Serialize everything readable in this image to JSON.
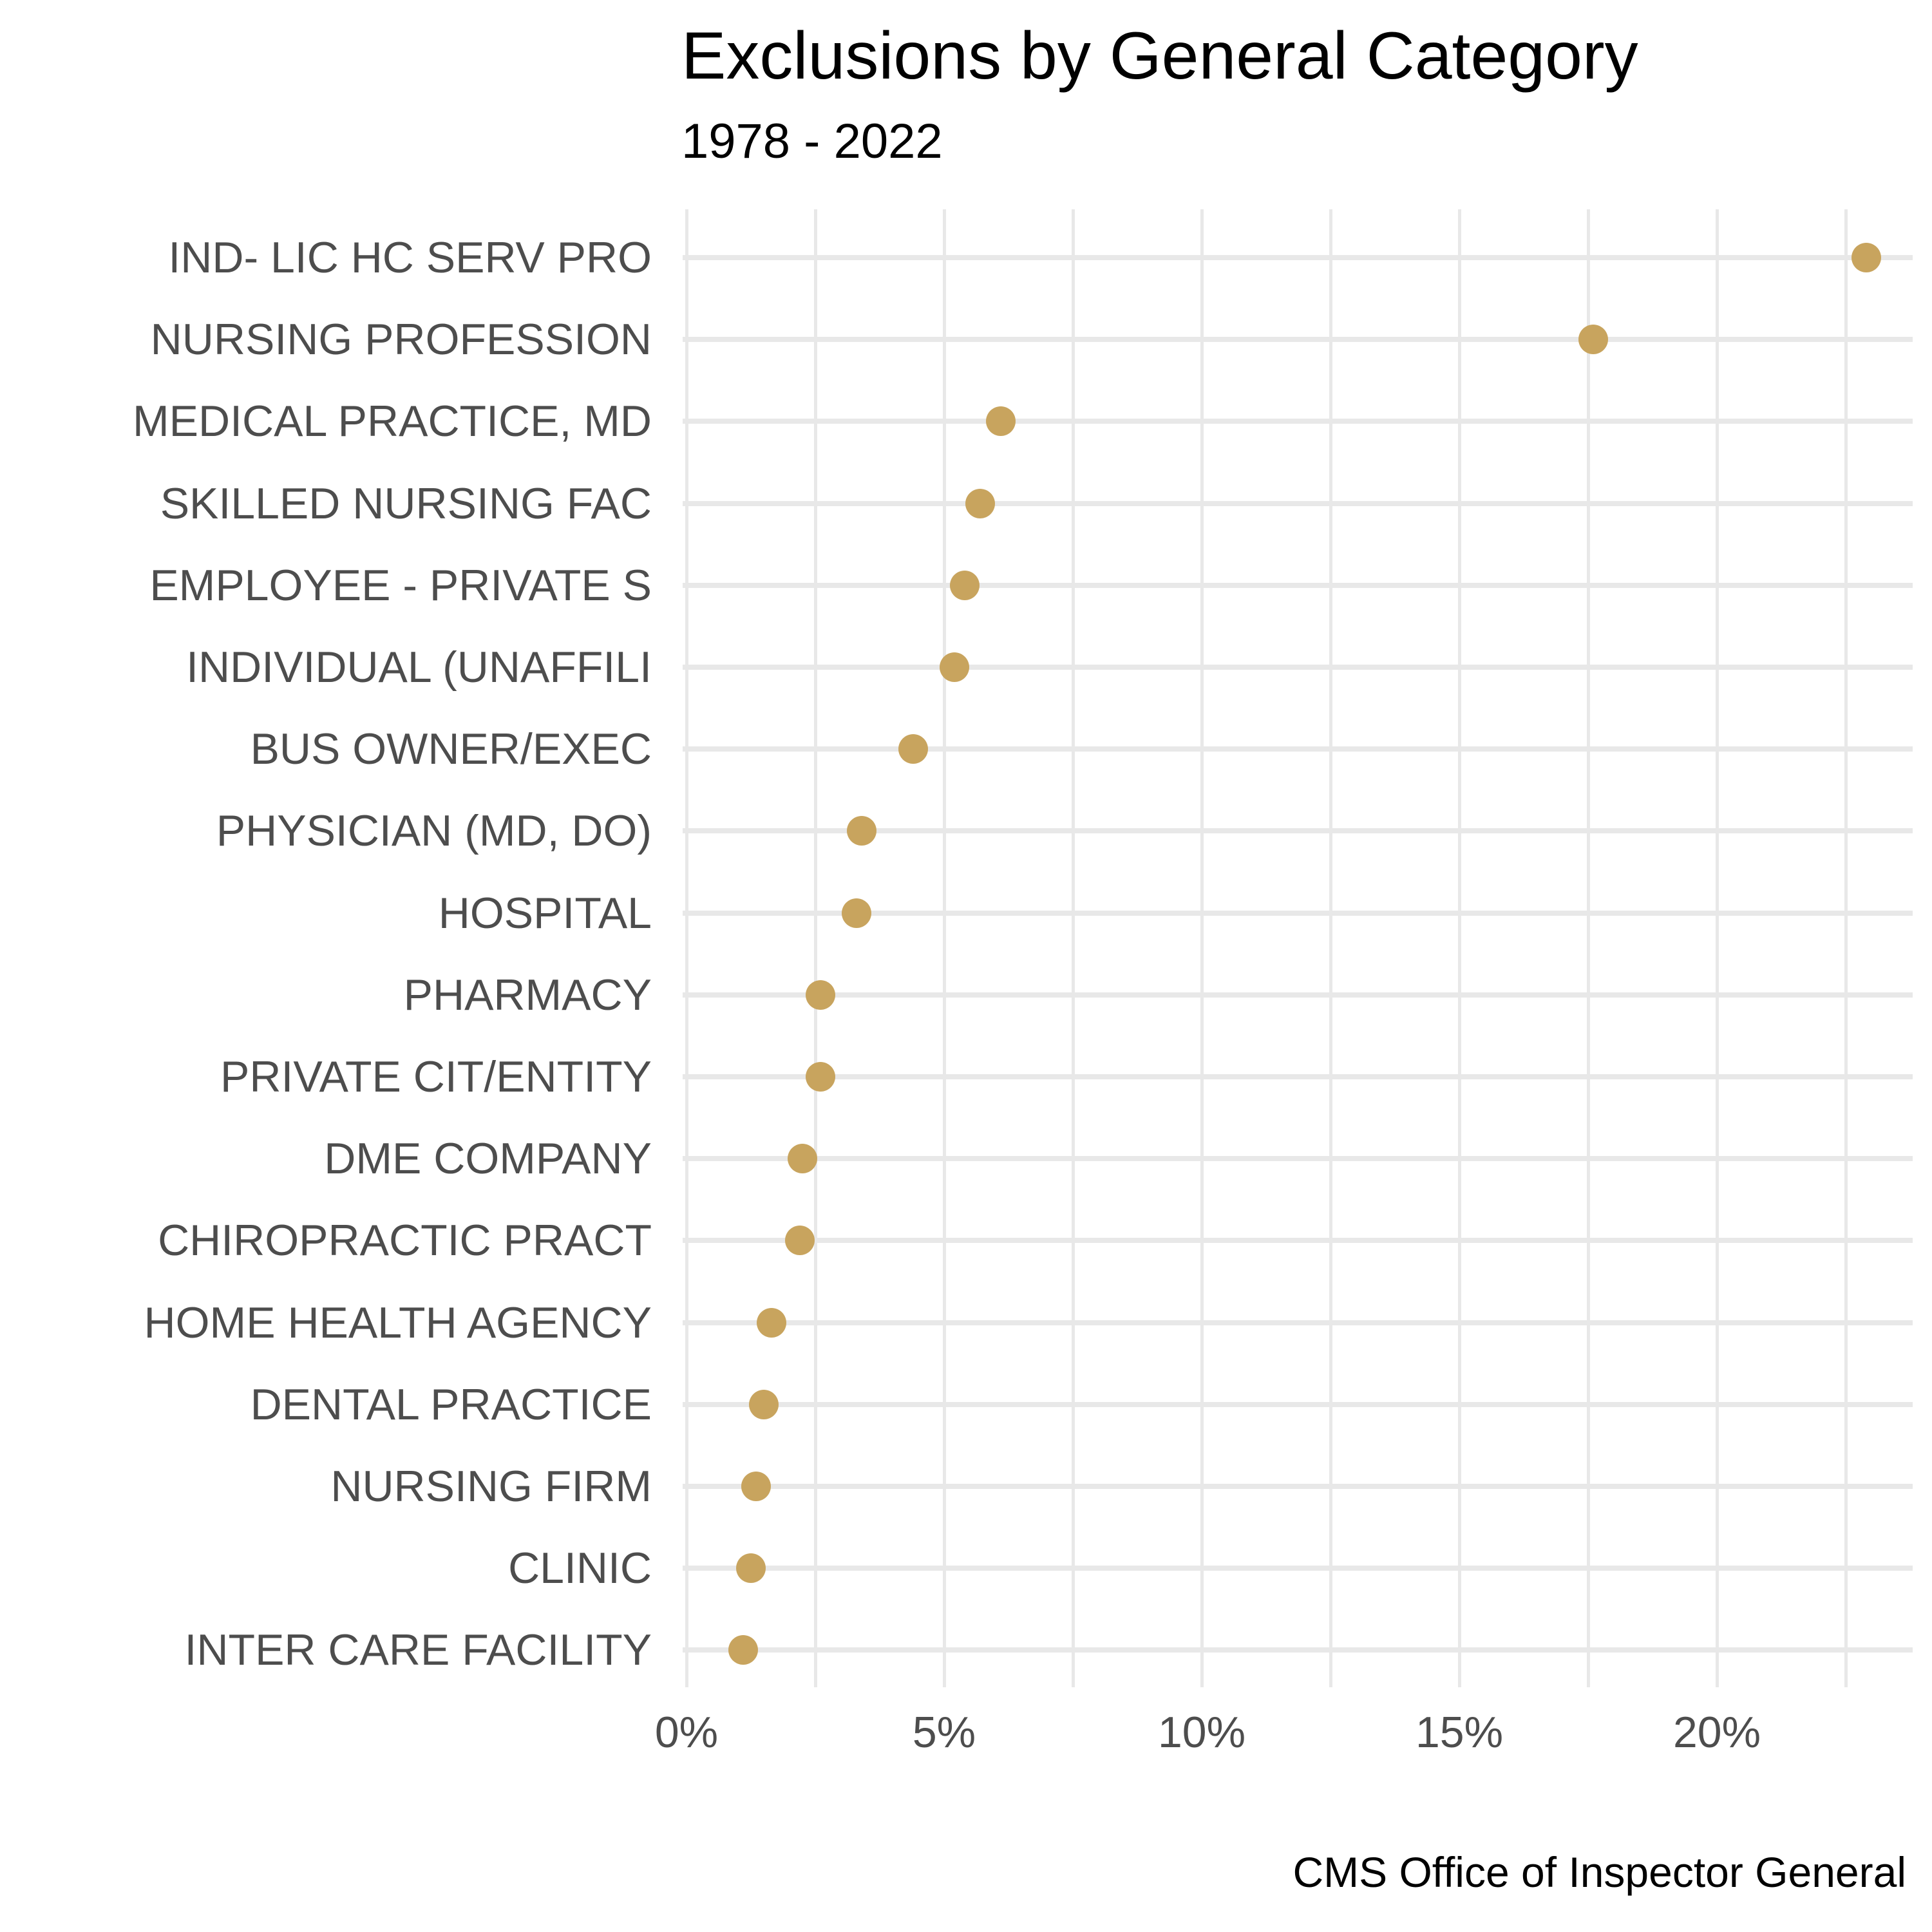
{
  "chart_data": {
    "type": "scatter",
    "variant": "cleveland-dot-plot",
    "title": "Exclusions by General Category",
    "subtitle": "1978 - 2022",
    "caption": "CMS Office of Inspector General",
    "xlabel": "",
    "ylabel": "",
    "unit": "percent",
    "categories": [
      "IND- LIC HC SERV PRO",
      "NURSING PROFESSION",
      "MEDICAL PRACTICE, MD",
      "SKILLED NURSING FAC",
      "EMPLOYEE - PRIVATE S",
      "INDIVIDUAL (UNAFFILI",
      "BUS OWNER/EXEC",
      "PHYSICIAN (MD, DO)",
      "HOSPITAL",
      "PHARMACY",
      "PRIVATE CIT/ENTITY",
      "DME COMPANY",
      "CHIROPRACTIC PRACT",
      "HOME HEALTH AGENCY",
      "DENTAL PRACTICE",
      "NURSING FIRM",
      "CLINIC",
      "INTER CARE FACILITY"
    ],
    "values": [
      22.9,
      17.6,
      6.1,
      5.7,
      5.4,
      5.2,
      4.4,
      3.4,
      3.3,
      2.6,
      2.6,
      2.25,
      2.2,
      1.65,
      1.5,
      1.35,
      1.25,
      1.1
    ],
    "x_tick_labels": [
      "0%",
      "5%",
      "10%",
      "15%",
      "20%"
    ],
    "x_major_ticks": [
      0,
      5,
      10,
      15,
      20
    ],
    "x_minor_ticks": [
      2.5,
      7.5,
      12.5,
      17.5,
      22.5
    ],
    "xlim": [
      0,
      23.8
    ],
    "grid": "vertical major+minor, horizontal per category row",
    "legend": "none",
    "colors": {
      "dot": "#C8A45E",
      "grid": "#E8E8E8",
      "axis_text": "#4D4D4D",
      "title_text": "#000000",
      "background": "#FFFFFF"
    }
  }
}
